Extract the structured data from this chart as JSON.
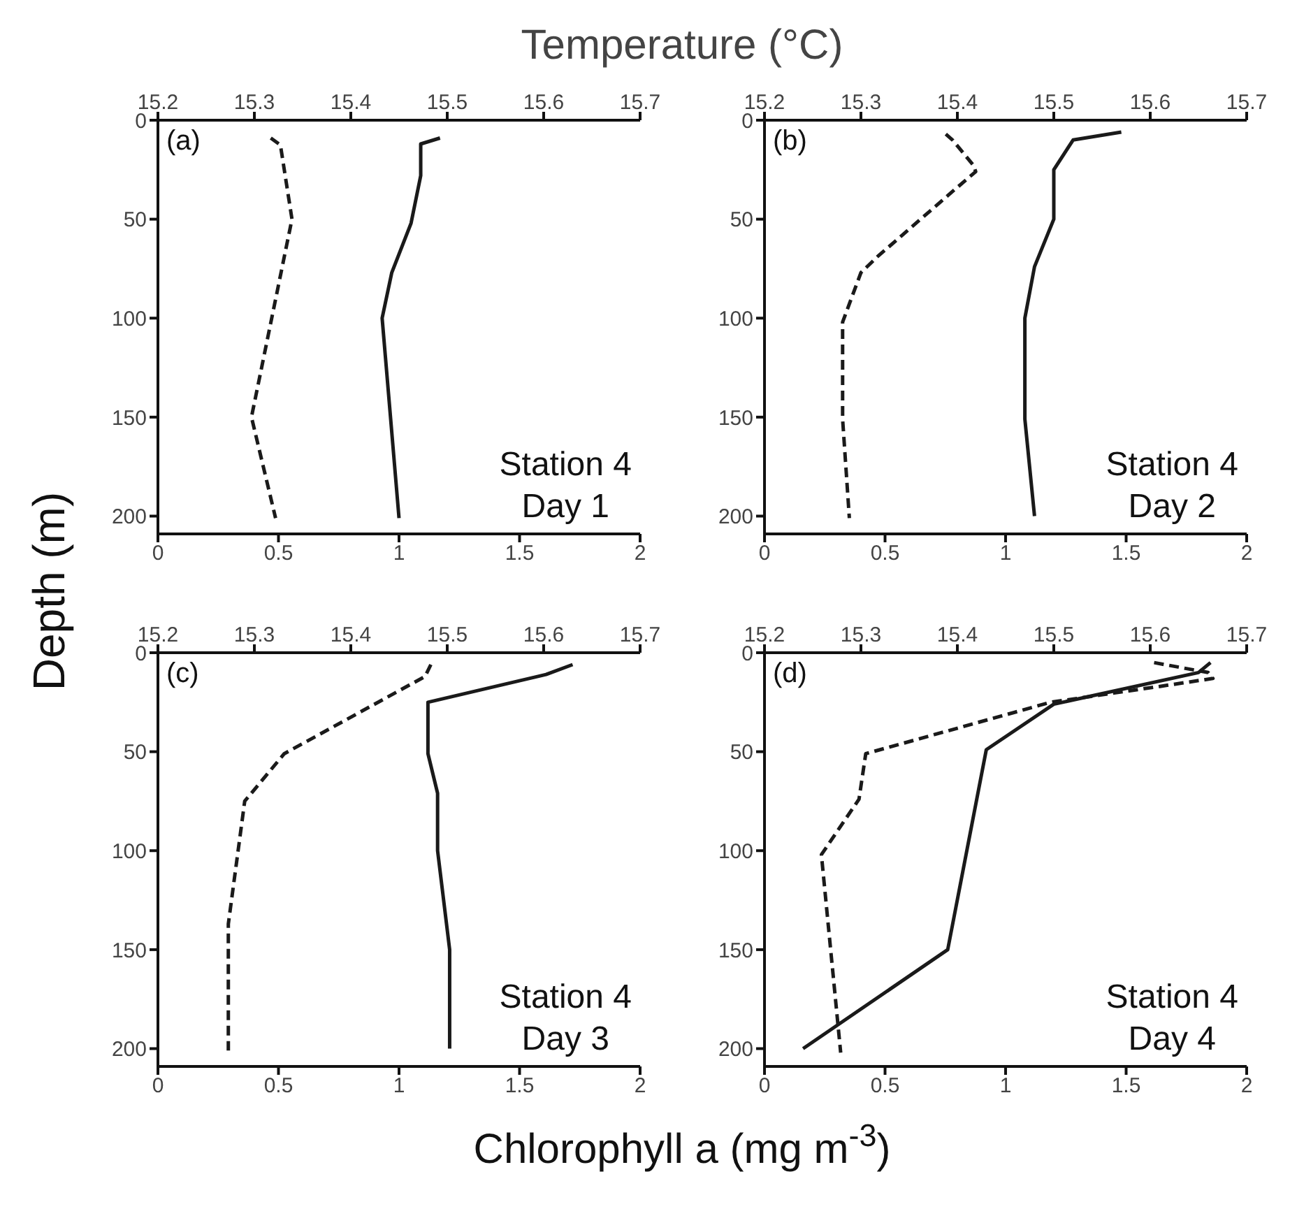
{
  "chart_data": [
    {
      "type": "line",
      "x2label": "Temperature (°C)",
      "ylabel": "Depth (m)",
      "annotations": [
        "(a)",
        "Station 4",
        "Day 1"
      ],
      "xlim": [
        0,
        2
      ],
      "xticks": [
        0,
        0.5,
        1,
        1.5,
        2
      ],
      "x2lim": [
        15.2,
        15.7
      ],
      "x2ticks": [
        15.2,
        15.3,
        15.4,
        15.5,
        15.6,
        15.7
      ],
      "ylim": [
        209,
        0
      ],
      "yticks": [
        0,
        50,
        100,
        150,
        200
      ],
      "marker": "none",
      "series": [
        {
          "color": "#1a1a1a",
          "line_style": "solid",
          "x": [
            1.17,
            1.09,
            1.09,
            1.05,
            0.97,
            0.93,
            1.0
          ],
          "values": [
            9,
            12,
            28,
            52,
            77,
            100,
            201
          ]
        },
        {
          "color": "#1a1a1a",
          "line_style": "dashed",
          "axis": "x2",
          "x": [
            15.317,
            15.327,
            15.339,
            15.297,
            15.322
          ],
          "values": [
            9,
            12.5,
            50,
            150,
            201
          ]
        }
      ]
    },
    {
      "type": "line",
      "annotations": [
        "(b)",
        "Station 4",
        "Day 2"
      ],
      "xlim": [
        0,
        2
      ],
      "xticks": [
        0,
        0.5,
        1,
        1.5,
        2
      ],
      "x2lim": [
        15.2,
        15.7
      ],
      "x2ticks": [
        15.2,
        15.3,
        15.4,
        15.5,
        15.6,
        15.7
      ],
      "ylim": [
        209,
        0
      ],
      "yticks": [
        0,
        50,
        100,
        150,
        200
      ],
      "marker": "none",
      "series": [
        {
          "color": "#1a1a1a",
          "line_style": "solid",
          "x": [
            1.48,
            1.28,
            1.2,
            1.2,
            1.12,
            1.08,
            1.08,
            1.12
          ],
          "values": [
            6,
            10,
            25,
            50,
            74,
            100,
            151,
            200
          ]
        },
        {
          "color": "#1a1a1a",
          "line_style": "dashed",
          "axis": "x2",
          "x": [
            15.388,
            15.395,
            15.417,
            15.419,
            15.395,
            15.317,
            15.3,
            15.281,
            15.281,
            15.288
          ],
          "values": [
            7,
            10,
            23,
            26,
            36,
            69,
            77,
            102,
            151,
            201
          ]
        }
      ]
    },
    {
      "type": "line",
      "xlabel": "Chlorophyll a (mg m$^{-3}$)",
      "annotations": [
        "(c)",
        "Station 4",
        "Day 3"
      ],
      "xlim": [
        0,
        2
      ],
      "xticks": [
        0,
        0.5,
        1,
        1.5,
        2
      ],
      "x2lim": [
        15.2,
        15.7
      ],
      "x2ticks": [
        15.2,
        15.3,
        15.4,
        15.5,
        15.6,
        15.7
      ],
      "ylim": [
        209,
        0
      ],
      "yticks": [
        0,
        50,
        100,
        150,
        200
      ],
      "marker": "none",
      "series": [
        {
          "color": "#1a1a1a",
          "line_style": "solid",
          "x": [
            1.72,
            1.61,
            1.12,
            1.12,
            1.16,
            1.16,
            1.21,
            1.21
          ],
          "values": [
            6,
            11,
            25,
            51,
            71,
            100,
            150,
            200
          ]
        },
        {
          "color": "#1a1a1a",
          "line_style": "dashed",
          "axis": "x2",
          "x": [
            15.483,
            15.477,
            15.331,
            15.29,
            15.273,
            15.273
          ],
          "values": [
            6,
            12,
            51,
            75,
            137,
            201
          ]
        }
      ]
    },
    {
      "type": "line",
      "annotations": [
        "(d)",
        "Station 4",
        "Day 4"
      ],
      "xlim": [
        0,
        2
      ],
      "xticks": [
        0,
        0.5,
        1,
        1.5,
        2
      ],
      "x2lim": [
        15.2,
        15.7
      ],
      "x2ticks": [
        15.2,
        15.3,
        15.4,
        15.5,
        15.6,
        15.7
      ],
      "ylim": [
        209,
        0
      ],
      "yticks": [
        0,
        50,
        100,
        150,
        200
      ],
      "marker": "none",
      "series": [
        {
          "color": "#1a1a1a",
          "line_style": "solid",
          "x": [
            1.85,
            1.8,
            1.2,
            0.92,
            0.76,
            0.16
          ],
          "values": [
            5,
            10,
            26,
            49,
            150,
            200
          ]
        },
        {
          "color": "#1a1a1a",
          "line_style": "dashed",
          "axis": "x2",
          "x": [
            15.604,
            15.66,
            15.665,
            15.61,
            15.497,
            15.305,
            15.298,
            15.259,
            15.279
          ],
          "values": [
            5,
            10,
            13,
            17,
            25,
            51,
            74,
            102,
            202
          ]
        }
      ]
    }
  ]
}
